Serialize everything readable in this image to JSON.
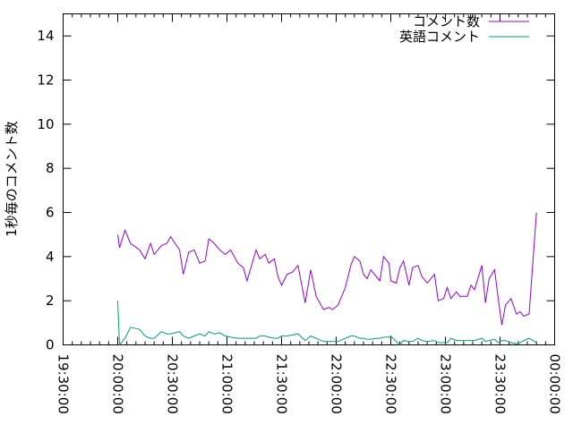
{
  "chart_data": {
    "type": "line",
    "title": "",
    "xlabel": "",
    "ylabel": "1秒毎のコメント数",
    "ylim": [
      0,
      15
    ],
    "xlim": [
      "19:30:00",
      "00:00:00"
    ],
    "yticks": [
      "0",
      "2",
      "4",
      "6",
      "8",
      "10",
      "12",
      "14"
    ],
    "xticks": [
      "19:30:00",
      "20:00:00",
      "20:30:00",
      "21:00:00",
      "21:30:00",
      "22:00:00",
      "22:30:00",
      "23:00:00",
      "23:30:00",
      "00:00:00"
    ],
    "grid": false,
    "legend_position": "top-right",
    "x": [
      "20:00",
      "20:01",
      "20:04",
      "20:07",
      "20:12",
      "20:15",
      "20:18",
      "20:20",
      "20:24",
      "20:27",
      "20:29",
      "20:34",
      "20:36",
      "20:39",
      "20:42",
      "20:45",
      "20:48",
      "20:50",
      "20:53",
      "20:56",
      "20:59",
      "21:02",
      "21:06",
      "21:09",
      "21:11",
      "21:16",
      "21:18",
      "21:21",
      "21:23",
      "21:26",
      "21:28",
      "21:30",
      "21:33",
      "21:36",
      "21:39",
      "21:43",
      "21:46",
      "21:49",
      "21:53",
      "21:56",
      "21:58",
      "22:01",
      "22:05",
      "22:08",
      "22:10",
      "22:13",
      "22:15",
      "22:17",
      "22:19",
      "22:22",
      "22:24",
      "22:26",
      "22:29",
      "22:30",
      "22:33",
      "22:35",
      "22:37",
      "22:40",
      "22:42",
      "22:45",
      "22:47",
      "22:50",
      "22:54",
      "22:56",
      "22:59",
      "23:01",
      "23:03",
      "23:06",
      "23:08",
      "23:12",
      "23:14",
      "23:16",
      "23:20",
      "23:22",
      "23:24",
      "23:27",
      "23:29",
      "23:31",
      "23:33",
      "23:36",
      "23:39",
      "23:41",
      "23:43",
      "23:46",
      "23:50"
    ],
    "series": [
      {
        "name": "コメント数",
        "color": "#9400d3",
        "values": [
          5.0,
          4.4,
          5.2,
          4.6,
          4.3,
          3.9,
          4.6,
          4.1,
          4.5,
          4.6,
          4.9,
          4.3,
          3.2,
          4.2,
          4.3,
          3.7,
          3.8,
          4.8,
          4.6,
          4.3,
          4.1,
          4.3,
          3.7,
          3.5,
          2.9,
          4.3,
          3.9,
          4.1,
          3.7,
          3.9,
          3.1,
          2.7,
          3.2,
          3.3,
          3.6,
          1.9,
          3.4,
          2.2,
          1.6,
          1.7,
          1.6,
          1.8,
          2.6,
          3.6,
          4.0,
          3.8,
          3.2,
          3.0,
          3.4,
          3.1,
          2.9,
          4.0,
          3.7,
          2.9,
          2.8,
          3.5,
          3.8,
          2.7,
          3.5,
          3.6,
          3.1,
          2.8,
          3.2,
          2.0,
          2.1,
          2.6,
          2.1,
          2.4,
          2.2,
          2.2,
          2.7,
          2.5,
          3.6,
          1.9,
          3.0,
          3.4,
          2.1,
          0.9,
          1.8,
          2.1,
          1.4,
          1.5,
          1.3,
          1.4,
          6.0
        ]
      },
      {
        "name": "英語コメント",
        "color": "#009e73",
        "values": [
          2.0,
          0.0,
          0.3,
          0.8,
          0.7,
          0.4,
          0.3,
          0.3,
          0.6,
          0.5,
          0.5,
          0.6,
          0.4,
          0.3,
          0.4,
          0.5,
          0.4,
          0.6,
          0.5,
          0.55,
          0.4,
          0.35,
          0.3,
          0.3,
          0.3,
          0.3,
          0.4,
          0.4,
          0.35,
          0.3,
          0.3,
          0.4,
          0.4,
          0.45,
          0.5,
          0.2,
          0.4,
          0.3,
          0.15,
          0.15,
          0.15,
          0.15,
          0.3,
          0.4,
          0.4,
          0.3,
          0.3,
          0.25,
          0.25,
          0.3,
          0.3,
          0.35,
          0.35,
          0.4,
          0.15,
          0.0,
          0.2,
          0.15,
          0.15,
          0.3,
          0.2,
          0.15,
          0.2,
          0.1,
          0.1,
          0.1,
          0.3,
          0.2,
          0.2,
          0.2,
          0.2,
          0.2,
          0.3,
          0.15,
          0.2,
          0.25,
          0.1,
          0.2,
          0.2,
          0.1,
          0.05,
          0.1,
          0.2,
          0.3,
          0.1
        ]
      }
    ]
  }
}
